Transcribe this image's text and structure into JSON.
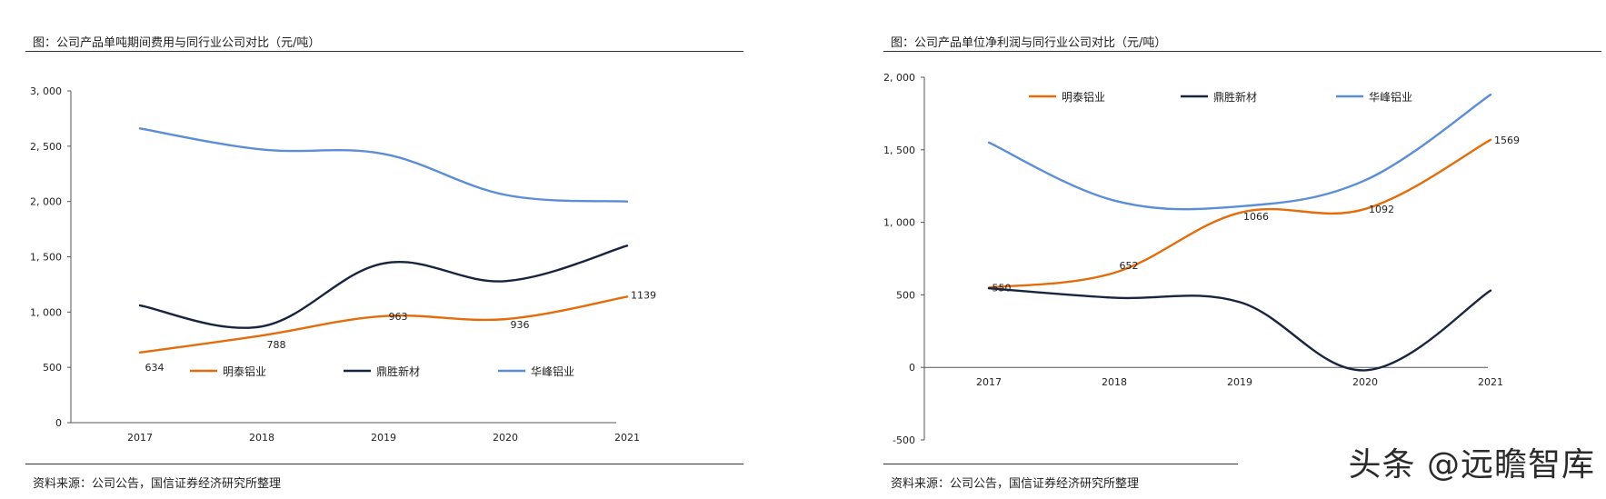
{
  "charts": {
    "left": {
      "fig_title": "图：公司产品单吨期间费用与同行业公司对比（元/吨）",
      "source": "资料来源：公司公告，国信证券经济研究所整理"
    },
    "right": {
      "fig_title": "图：公司产品单位净利润与同行业公司对比（元/吨）",
      "source": "资料来源：公司公告，国信证券经济研究所整理"
    }
  },
  "watermark": "头条 @远瞻智库",
  "chart_data": [
    {
      "type": "line",
      "title": "图：公司产品单吨期间费用与同行业公司对比（元/吨）",
      "xlabel": "",
      "ylabel": "",
      "categories": [
        "2017",
        "2018",
        "2019",
        "2020",
        "2021"
      ],
      "ylim": [
        0,
        3000
      ],
      "yticks": [
        0,
        500,
        1000,
        1500,
        2000,
        2500,
        3000
      ],
      "ytick_labels": [
        "0",
        "500",
        "1, 000",
        "1, 500",
        "2, 000",
        "2, 500",
        "3, 000"
      ],
      "legend_position": "lower-middle",
      "series": [
        {
          "name": "明泰铝业",
          "color": "#E46C0A",
          "values": [
            634,
            788,
            963,
            936,
            1139
          ],
          "data_labels": [
            "634",
            "788",
            "963",
            "936",
            "1139"
          ]
        },
        {
          "name": "鼎胜新材",
          "color": "#17253F",
          "values": [
            1060,
            870,
            1440,
            1280,
            1600
          ],
          "data_labels": []
        },
        {
          "name": "华峰铝业",
          "color": "#5B8ED6",
          "values": [
            2660,
            2470,
            2430,
            2060,
            2000
          ],
          "data_labels": []
        }
      ]
    },
    {
      "type": "line",
      "title": "图：公司产品单位净利润与同行业公司对比（元/吨）",
      "xlabel": "",
      "ylabel": "",
      "categories": [
        "2017",
        "2018",
        "2019",
        "2020",
        "2021"
      ],
      "ylim": [
        -500,
        2000
      ],
      "yticks": [
        -500,
        0,
        500,
        1000,
        1500,
        2000
      ],
      "ytick_labels": [
        "-500",
        "0",
        "500",
        "1, 000",
        "1, 500",
        "2, 000"
      ],
      "legend_position": "top",
      "series": [
        {
          "name": "明泰铝业",
          "color": "#E46C0A",
          "values": [
            550,
            652,
            1066,
            1092,
            1569
          ],
          "data_labels": [
            "550",
            "652",
            "1066",
            "1092",
            "1569"
          ]
        },
        {
          "name": "鼎胜新材",
          "color": "#17253F",
          "values": [
            545,
            480,
            450,
            -20,
            530
          ],
          "data_labels": []
        },
        {
          "name": "华峰铝业",
          "color": "#5B8ED6",
          "values": [
            1550,
            1150,
            1110,
            1290,
            1880
          ],
          "data_labels": []
        }
      ]
    }
  ]
}
